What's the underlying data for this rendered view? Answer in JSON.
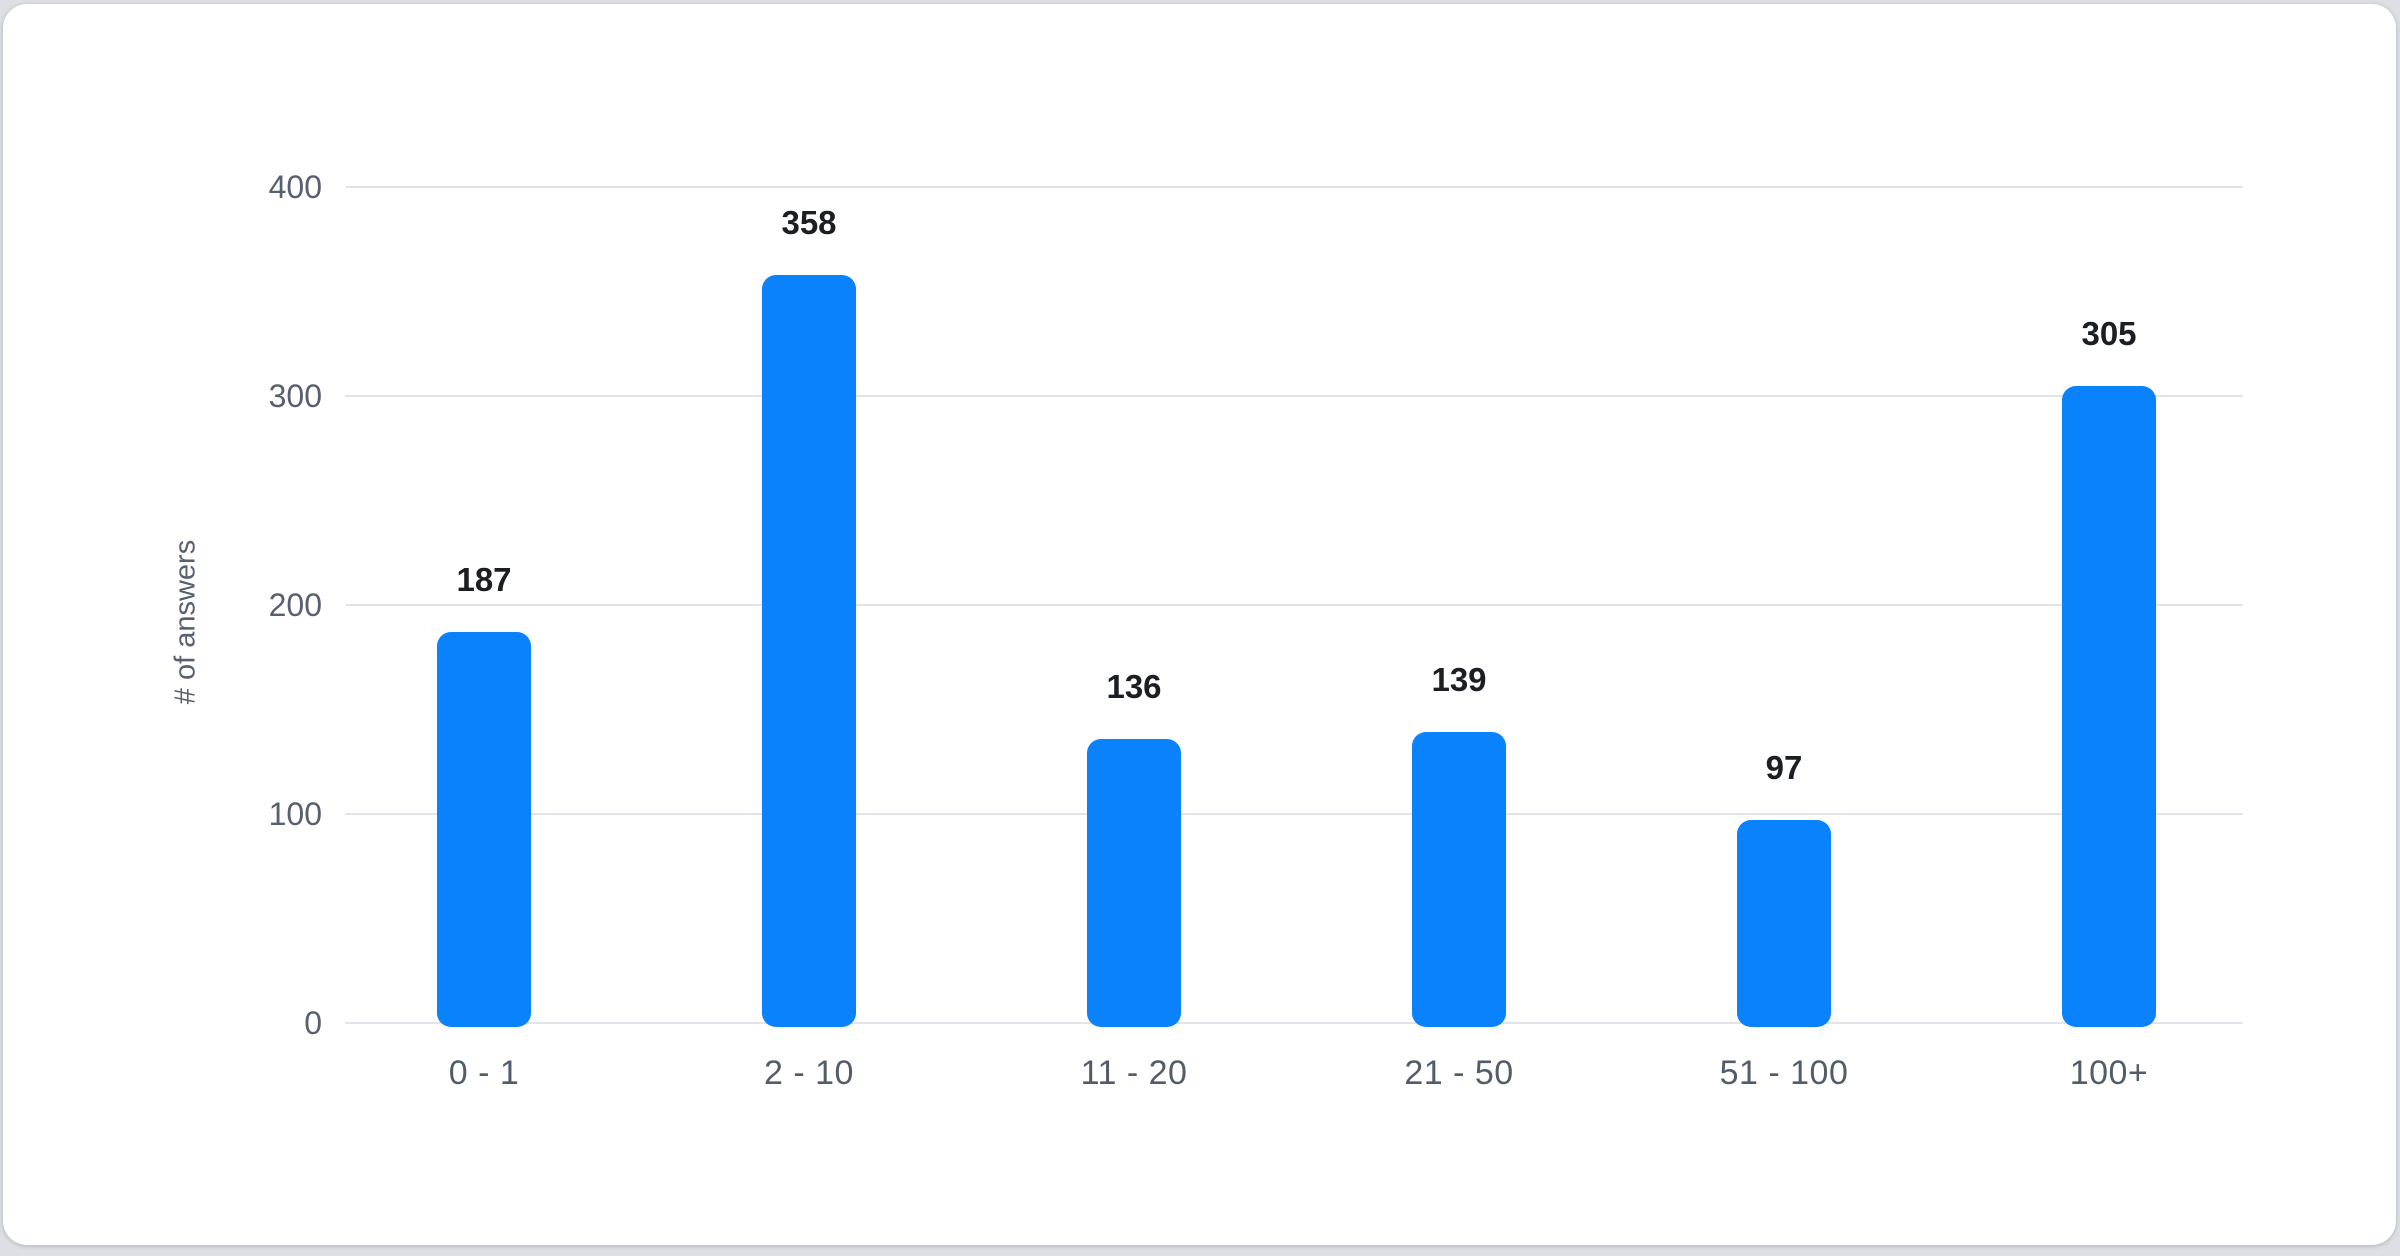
{
  "chart_data": {
    "type": "bar",
    "categories": [
      "0 - 1",
      "2 - 10",
      "11 - 20",
      "21 - 50",
      "51 - 100",
      "100+"
    ],
    "values": [
      187,
      358,
      136,
      139,
      97,
      305
    ],
    "data_labels": [
      "187",
      "358",
      "136",
      "139",
      "97",
      "305"
    ],
    "title": "",
    "xlabel": "",
    "ylabel": "# of answers",
    "ylim": [
      0,
      400
    ],
    "yticks": [
      0,
      100,
      200,
      300,
      400
    ],
    "grid": "horizontal gridlines on, vertical off",
    "legend": "none",
    "bar_style": "rounded corners, solid fill"
  },
  "colors": {
    "bar": "#0a82fc",
    "gridline": "#e1e4e8",
    "axis_text": "#566070",
    "x_label_text": "#525d6b",
    "value_text": "#1b1e22",
    "card_bg": "#ffffff",
    "page_bg": "#dcdfe3"
  }
}
